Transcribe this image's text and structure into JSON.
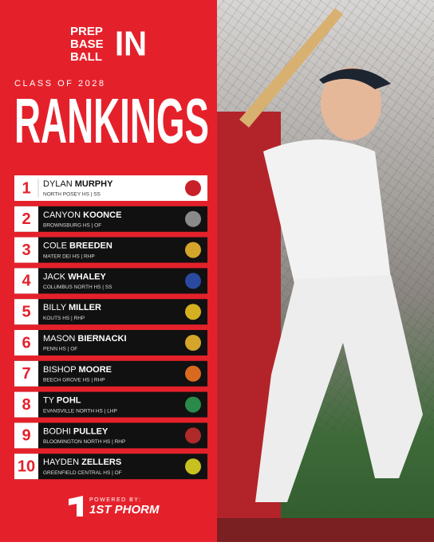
{
  "logo": {
    "line1": "PREP",
    "line2": "BASE",
    "line3": "BALL",
    "mark": "IN"
  },
  "subtitle": "CLASS OF 2028",
  "title": "RANKINGS",
  "rankings": [
    {
      "rank": 1,
      "first": "DYLAN",
      "last": "MURPHY",
      "school": "NORTH POSEY HS | SS"
    },
    {
      "rank": 2,
      "first": "CANYON",
      "last": "KOONCE",
      "school": "BROWNSBURG HS | OF"
    },
    {
      "rank": 3,
      "first": "COLE",
      "last": "BREEDEN",
      "school": "MATER DEI HS | RHP"
    },
    {
      "rank": 4,
      "first": "JACK",
      "last": "WHALEY",
      "school": "COLUMBUS NORTH HS | SS"
    },
    {
      "rank": 5,
      "first": "BILLY",
      "last": "MILLER",
      "school": "KOUTS HS | RHP"
    },
    {
      "rank": 6,
      "first": "MASON",
      "last": "BIERNACKI",
      "school": "PENN HS | OF"
    },
    {
      "rank": 7,
      "first": "BISHOP",
      "last": "MOORE",
      "school": "BEECH GROVE HS | RHP"
    },
    {
      "rank": 8,
      "first": "TY",
      "last": "POHL",
      "school": "EVANSVILLE NORTH HS | LHP"
    },
    {
      "rank": 9,
      "first": "BODHI",
      "last": "PULLEY",
      "school": "BLOOMINGTON NORTH HS | RHP"
    },
    {
      "rank": 10,
      "first": "HAYDEN",
      "last": "ZELLERS",
      "school": "GREENFIELD CENTRAL HS | OF"
    }
  ],
  "footer": {
    "label": "POWERED BY:",
    "brand": "1ST PHORM"
  }
}
